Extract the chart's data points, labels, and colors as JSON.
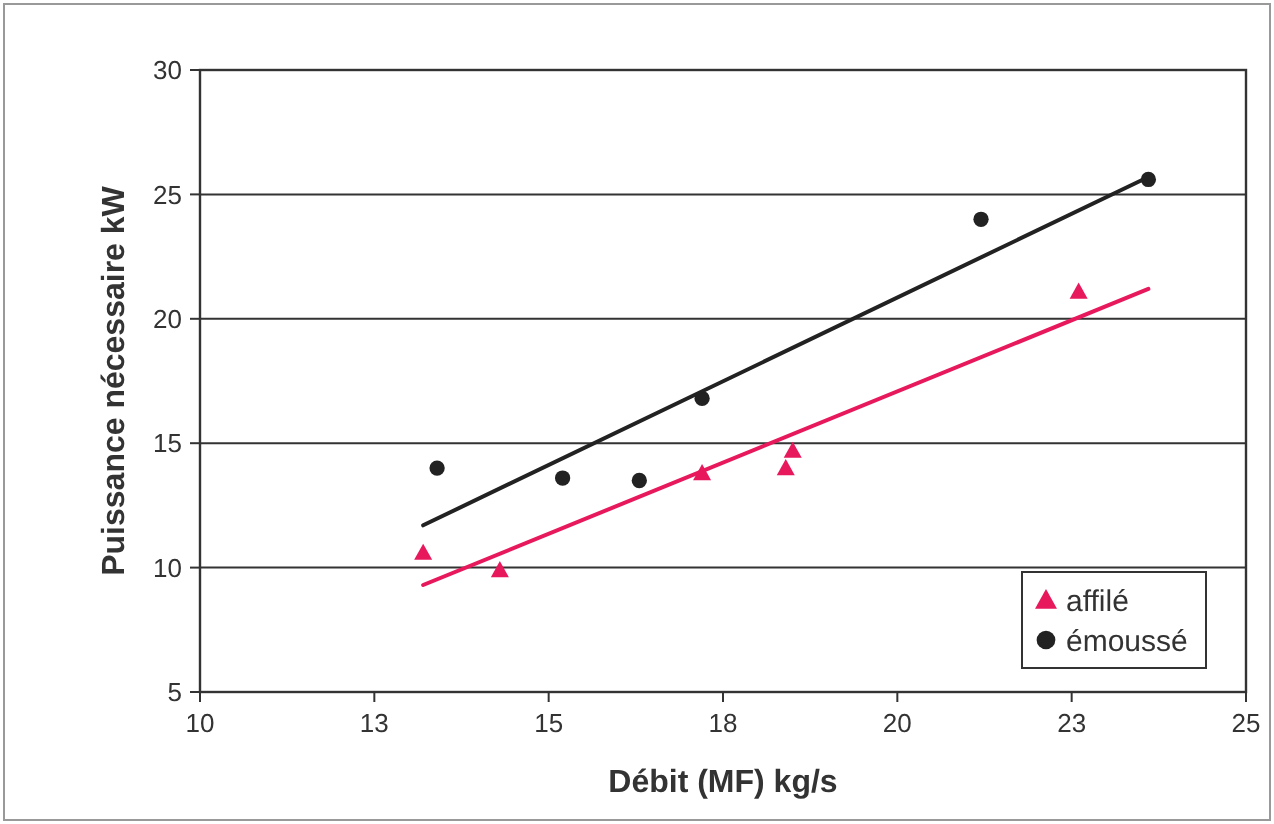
{
  "chart_data": {
    "type": "scatter",
    "xlabel": "Débit (MF) kg/s",
    "ylabel": "Puissance nécessaire kW",
    "xlim": [
      10,
      25
    ],
    "xticks": [
      10,
      {
        "value": 12.5,
        "label": "13"
      },
      15,
      {
        "value": 17.5,
        "label": "18"
      },
      20,
      {
        "value": 22.5,
        "label": "23"
      },
      25
    ],
    "ylim": [
      5,
      30
    ],
    "yticks": [
      5,
      10,
      15,
      20,
      25,
      30
    ],
    "grid": "y",
    "legend": "bottom right",
    "series": [
      {
        "name": "affilé",
        "marker": "triangle",
        "color": "#e8185c",
        "x": [
          13.2,
          14.3,
          17.2,
          18.4,
          18.5,
          22.6
        ],
        "values": [
          10.6,
          9.9,
          13.8,
          14,
          14.7,
          21.1
        ]
      },
      {
        "name": "émoussé",
        "marker": "circle",
        "color": "#222222",
        "x": [
          13.4,
          15.2,
          16.3,
          17.2,
          21.2,
          23.6
        ],
        "values": [
          14,
          13.6,
          13.5,
          16.8,
          24,
          25.6
        ]
      },
      {
        "type": "line",
        "marker": "none",
        "color": "#e8185c",
        "x": [
          13.2,
          23.6
        ],
        "values": [
          9.3,
          21.2
        ]
      },
      {
        "type": "line",
        "marker": "none",
        "color": "#222222",
        "x": [
          13.2,
          23.6
        ],
        "values": [
          11.7,
          25.7
        ]
      }
    ]
  }
}
